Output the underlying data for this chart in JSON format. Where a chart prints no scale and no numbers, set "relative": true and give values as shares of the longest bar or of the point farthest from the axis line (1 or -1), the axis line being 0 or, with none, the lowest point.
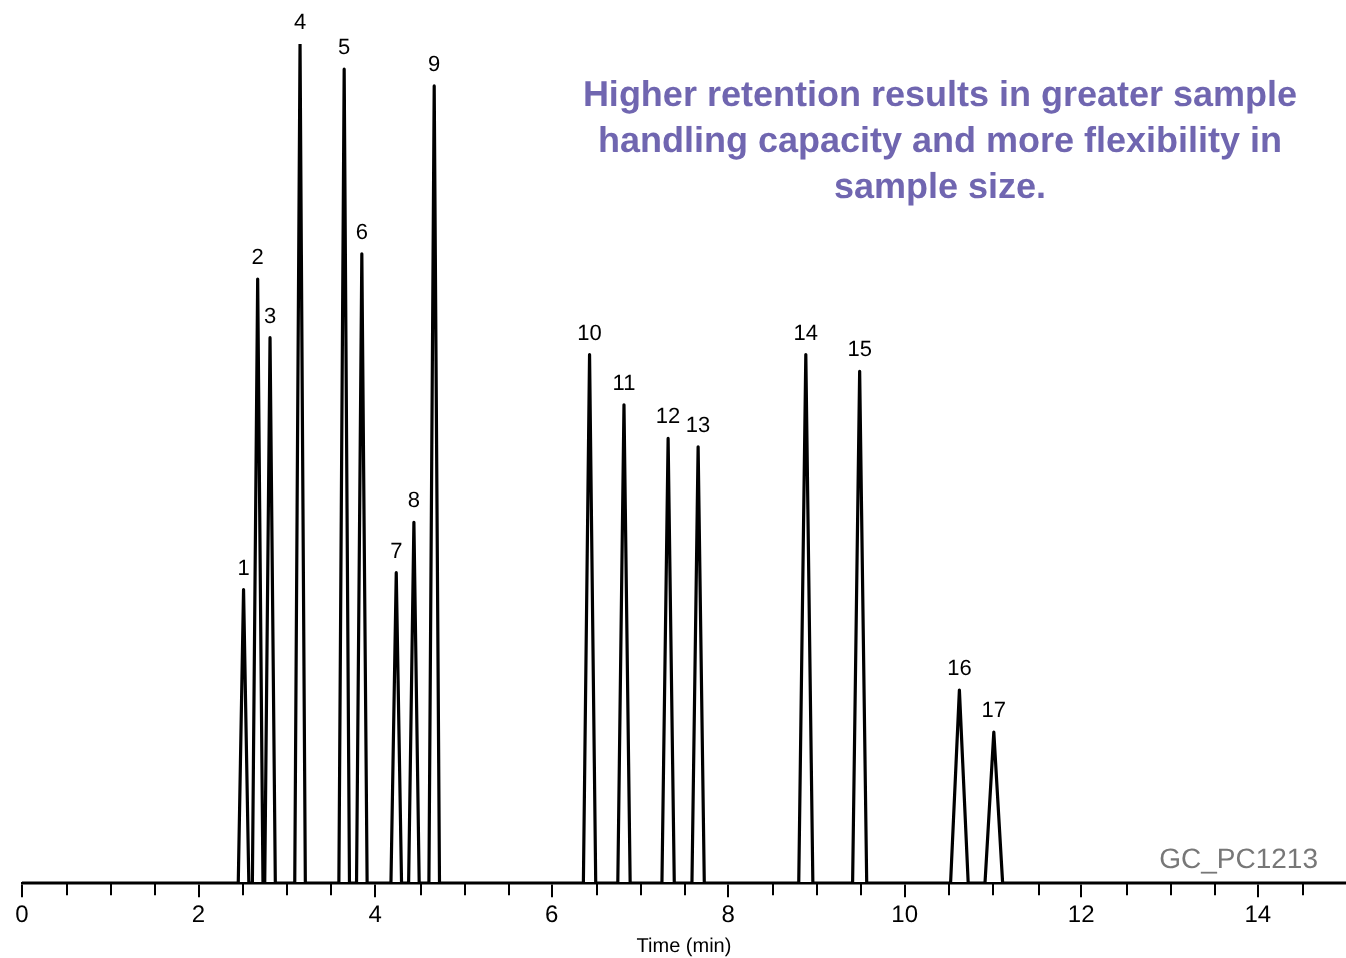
{
  "chart_data": {
    "type": "line",
    "relative": true,
    "title": "Higher retention results in greater sample handling capacity and more flexibility in sample size.",
    "xlabel": "Time (min)",
    "xlim": [
      0,
      15
    ],
    "xticks": [
      0,
      {
        "value": 0.5,
        "label": null
      },
      {
        "value": 1,
        "label": null
      },
      {
        "value": 1.5,
        "label": null
      },
      2,
      {
        "value": 2.5,
        "label": null
      },
      {
        "value": 3,
        "label": null
      },
      {
        "value": 3.5,
        "label": null
      },
      4,
      {
        "value": 4.5,
        "label": null
      },
      {
        "value": 5,
        "label": null
      },
      {
        "value": 5.5,
        "label": null
      },
      6,
      {
        "value": 6.5,
        "label": null
      },
      {
        "value": 7,
        "label": null
      },
      {
        "value": 7.5,
        "label": null
      },
      8,
      {
        "value": 8.5,
        "label": null
      },
      {
        "value": 9,
        "label": null
      },
      {
        "value": 9.5,
        "label": null
      },
      10,
      {
        "value": 10.5,
        "label": null
      },
      {
        "value": 11,
        "label": null
      },
      {
        "value": 11.5,
        "label": null
      },
      12,
      {
        "value": 12.5,
        "label": null
      },
      {
        "value": 13,
        "label": null
      },
      {
        "value": 13.5,
        "label": null
      },
      14,
      {
        "value": 14.5,
        "label": null
      }
    ],
    "tick_labels": "x",
    "grid": false,
    "legend": false,
    "marker": "none",
    "line_style": "solid",
    "series": [
      {
        "color": "#000000",
        "x": [
          0,
          2.45,
          2.51,
          2.57,
          2.61,
          2.67,
          2.73,
          2.75,
          2.81,
          2.87,
          3.09,
          3.15,
          3.21,
          3.59,
          3.65,
          3.71,
          3.79,
          3.85,
          3.91,
          4.18,
          4.24,
          4.3,
          4.38,
          4.44,
          4.5,
          4.61,
          4.67,
          4.73,
          6.36,
          6.43,
          6.5,
          6.75,
          6.82,
          6.89,
          7.25,
          7.32,
          7.39,
          7.59,
          7.66,
          7.73,
          8.8,
          8.88,
          8.96,
          9.41,
          9.49,
          9.57,
          10.52,
          10.62,
          10.72,
          10.91,
          11.01,
          11.11,
          15
        ],
        "values": [
          0,
          0,
          0.35,
          0,
          0,
          0.72,
          0,
          0,
          0.65,
          0,
          0,
          1,
          0,
          0,
          0.97,
          0,
          0,
          0.75,
          0,
          0,
          0.37,
          0,
          0,
          0.43,
          0,
          0,
          0.95,
          0,
          0,
          0.63,
          0,
          0,
          0.57,
          0,
          0,
          0.53,
          0,
          0,
          0.52,
          0,
          0,
          0.63,
          0,
          0,
          0.61,
          0,
          0,
          0.23,
          0,
          0,
          0.18,
          0,
          0
        ]
      }
    ],
    "annotations": [
      {
        "text": "1",
        "x": 2.51,
        "y": 0.35
      },
      {
        "text": "2",
        "x": 2.67,
        "y": 0.72
      },
      {
        "text": "3",
        "x": 2.81,
        "y": 0.65
      },
      {
        "text": "4",
        "x": 3.15,
        "y": 1
      },
      {
        "text": "5",
        "x": 3.65,
        "y": 0.97
      },
      {
        "text": "6",
        "x": 3.85,
        "y": 0.75
      },
      {
        "text": "7",
        "x": 4.24,
        "y": 0.37
      },
      {
        "text": "8",
        "x": 4.44,
        "y": 0.43
      },
      {
        "text": "9",
        "x": 4.67,
        "y": 0.95
      },
      {
        "text": "10",
        "x": 6.43,
        "y": 0.63
      },
      {
        "text": "11",
        "x": 6.82,
        "y": 0.57
      },
      {
        "text": "12",
        "x": 7.32,
        "y": 0.53
      },
      {
        "text": "13",
        "x": 7.66,
        "y": 0.52
      },
      {
        "text": "14",
        "x": 8.88,
        "y": 0.63
      },
      {
        "text": "15",
        "x": 9.49,
        "y": 0.61
      },
      {
        "text": "16",
        "x": 10.62,
        "y": 0.23
      },
      {
        "text": "17",
        "x": 11.01,
        "y": 0.18
      },
      "GC_PC1213"
    ]
  }
}
